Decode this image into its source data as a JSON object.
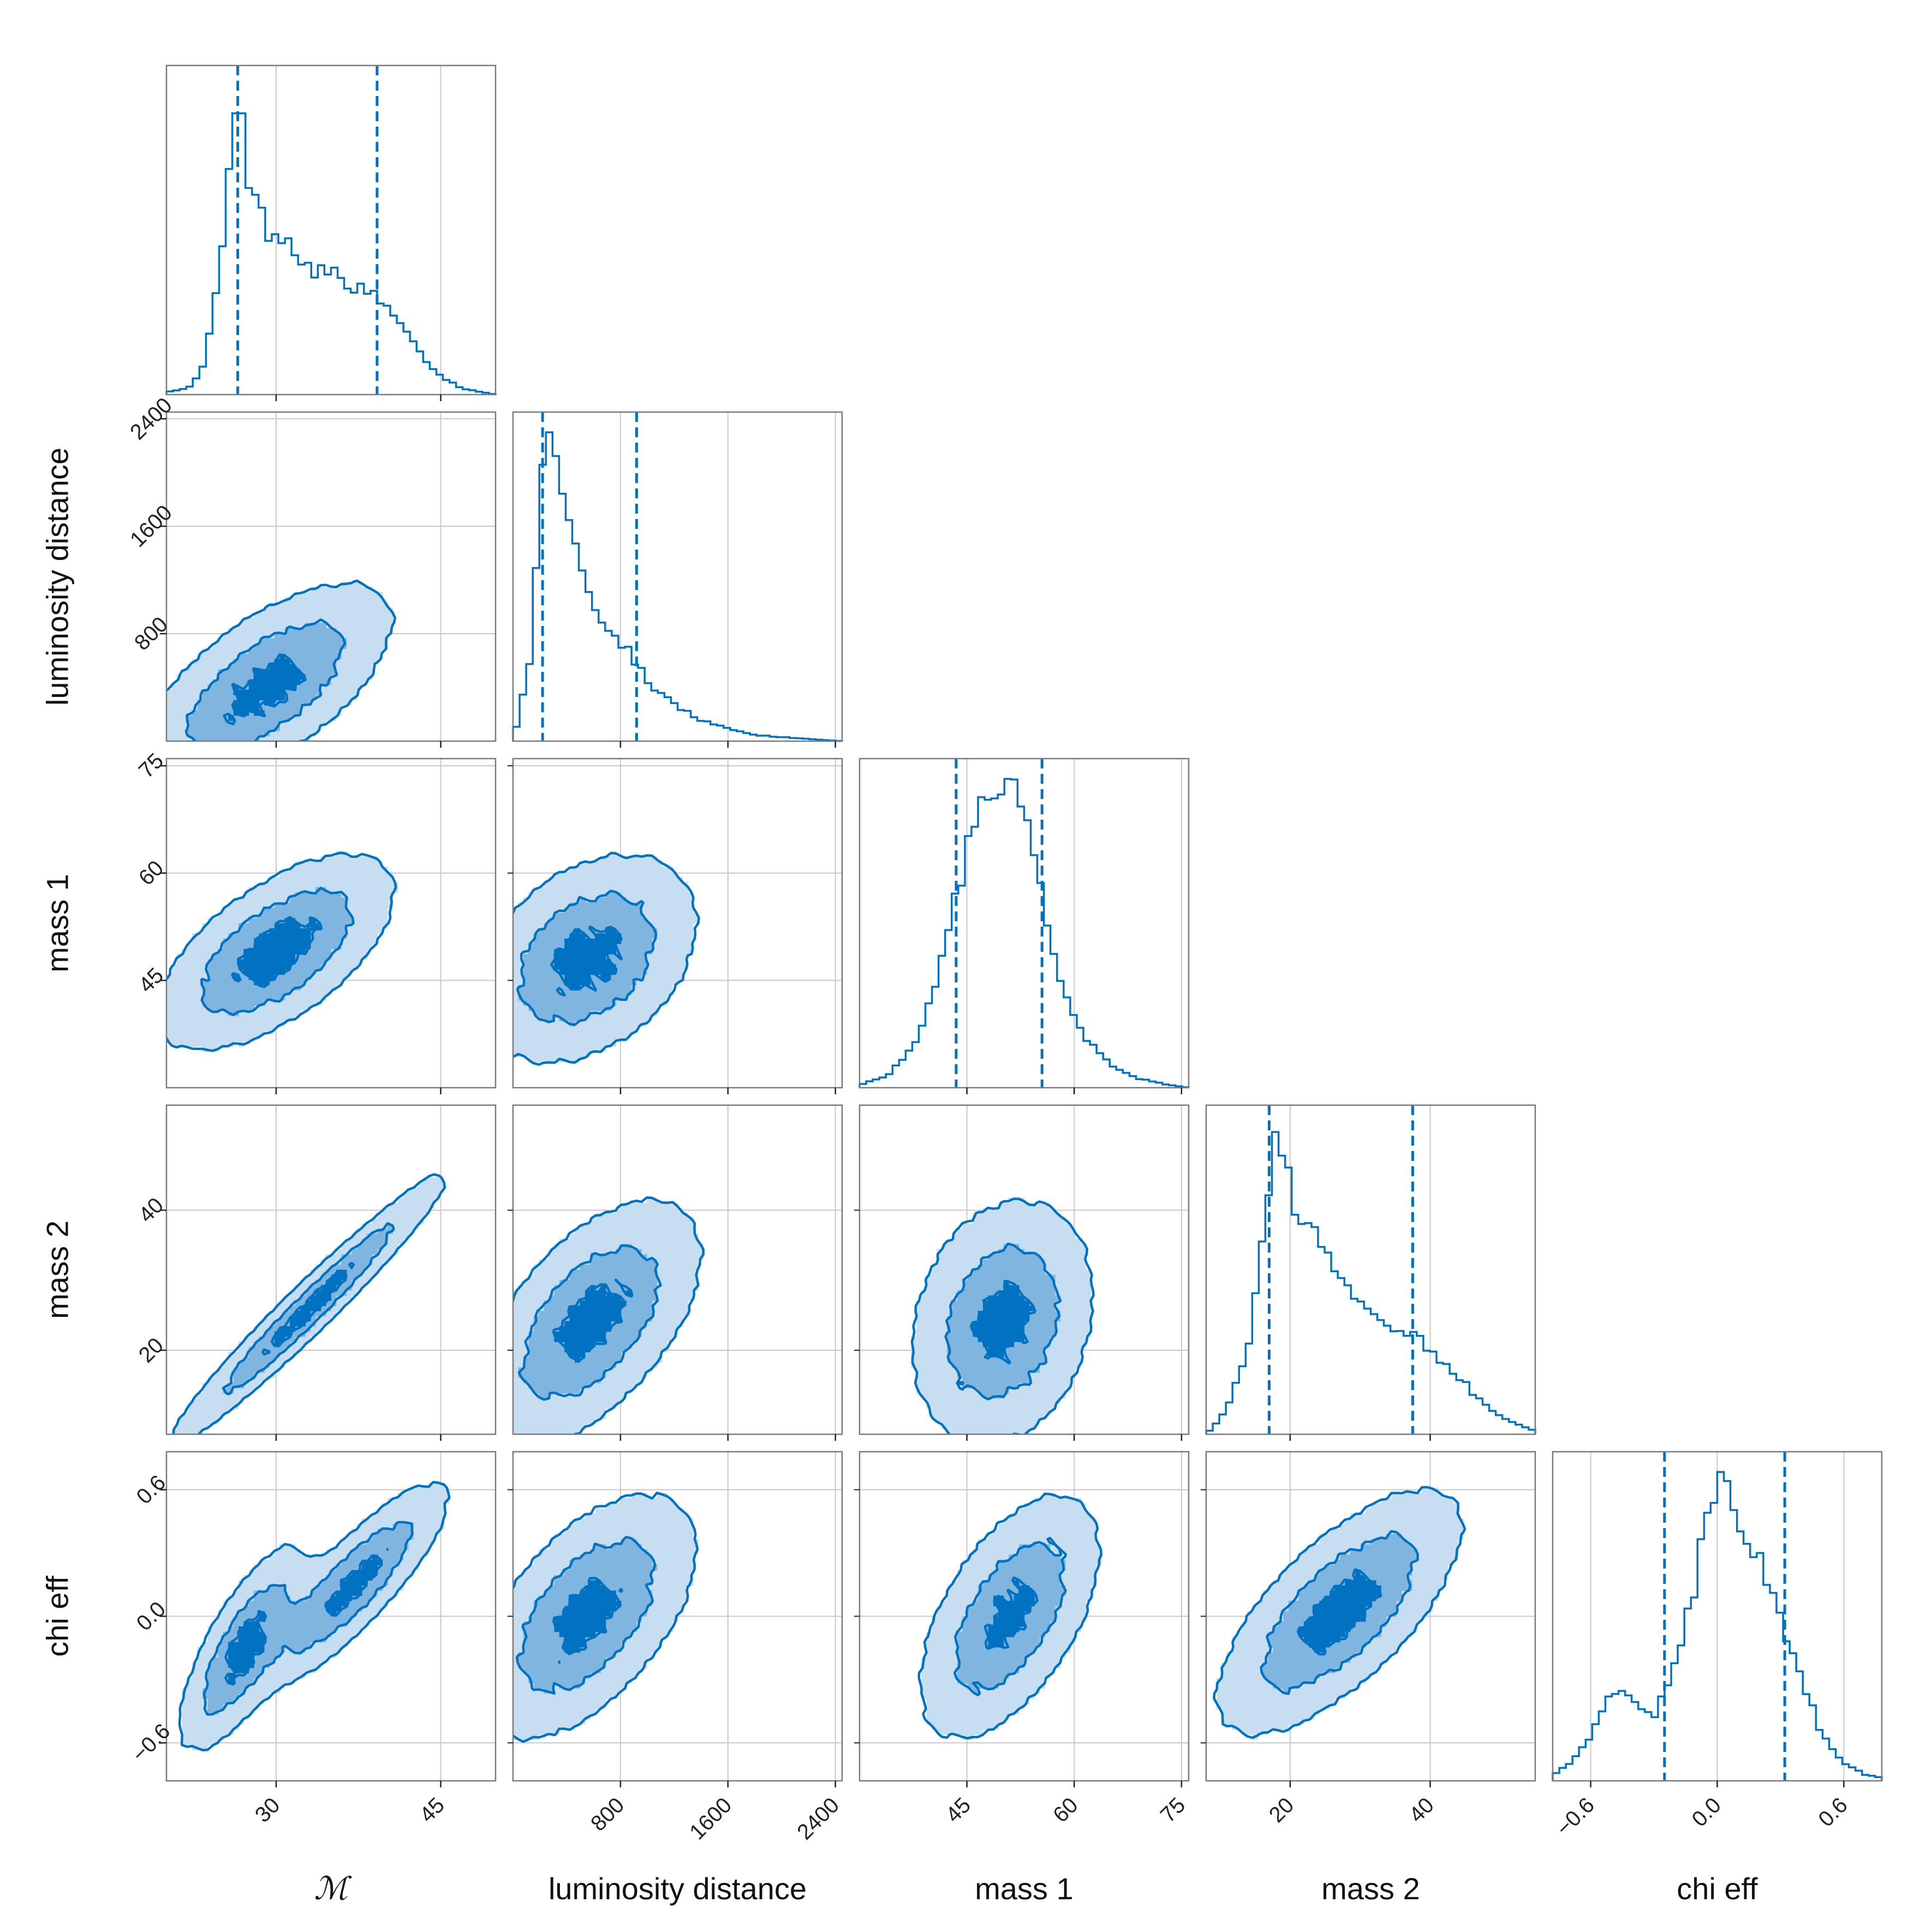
{
  "chart_data": {
    "type": "corner",
    "color": "#0072C1",
    "fill_colors": [
      "#C7DEF0",
      "#7FB5DE",
      "#0072C1"
    ],
    "parameters": [
      {
        "name": "M",
        "label": "ℳ",
        "range": [
          20,
          50
        ],
        "ticks": [
          30,
          45
        ],
        "tick_labels": [
          "30",
          "45"
        ],
        "quantiles": [
          26.5,
          39.2
        ],
        "hist_profile": [
          [
            20,
            0.01
          ],
          [
            22,
            0.02
          ],
          [
            23.5,
            0.1
          ],
          [
            25,
            0.45
          ],
          [
            26.5,
            1.0
          ],
          [
            27.5,
            0.72
          ],
          [
            29,
            0.55
          ],
          [
            31,
            0.52
          ],
          [
            33,
            0.42
          ],
          [
            35,
            0.4
          ],
          [
            37,
            0.36
          ],
          [
            39,
            0.32
          ],
          [
            41,
            0.25
          ],
          [
            43,
            0.14
          ],
          [
            45,
            0.06
          ],
          [
            47,
            0.02
          ],
          [
            50,
            0.0
          ]
        ]
      },
      {
        "name": "luminosity_distance",
        "label": "luminosity distance",
        "range": [
          0,
          2450
        ],
        "ticks": [
          800,
          1600,
          2400
        ],
        "tick_labels": [
          "800",
          "1600",
          "2400"
        ],
        "quantiles": [
          220,
          920
        ],
        "hist_profile": [
          [
            0,
            0.0
          ],
          [
            120,
            0.25
          ],
          [
            200,
            0.8
          ],
          [
            260,
            1.0
          ],
          [
            350,
            0.9
          ],
          [
            450,
            0.7
          ],
          [
            550,
            0.52
          ],
          [
            700,
            0.38
          ],
          [
            850,
            0.3
          ],
          [
            1000,
            0.2
          ],
          [
            1200,
            0.12
          ],
          [
            1400,
            0.07
          ],
          [
            1600,
            0.04
          ],
          [
            1800,
            0.02
          ],
          [
            2100,
            0.01
          ],
          [
            2450,
            0.0
          ]
        ]
      },
      {
        "name": "mass_1",
        "label": "mass 1",
        "range": [
          30,
          76
        ],
        "ticks": [
          45,
          60,
          75
        ],
        "tick_labels": [
          "45",
          "60",
          "75"
        ],
        "quantiles": [
          43.5,
          55.5
        ],
        "hist_profile": [
          [
            30,
            0.01
          ],
          [
            34,
            0.04
          ],
          [
            38,
            0.15
          ],
          [
            41,
            0.35
          ],
          [
            44,
            0.7
          ],
          [
            47,
            0.9
          ],
          [
            49,
            0.97
          ],
          [
            51,
            1.0
          ],
          [
            53,
            0.94
          ],
          [
            55,
            0.75
          ],
          [
            57,
            0.45
          ],
          [
            59,
            0.28
          ],
          [
            62,
            0.15
          ],
          [
            65,
            0.08
          ],
          [
            69,
            0.03
          ],
          [
            73,
            0.01
          ],
          [
            76,
            0.0
          ]
        ]
      },
      {
        "name": "mass_2",
        "label": "mass 2",
        "range": [
          8,
          55
        ],
        "ticks": [
          20,
          40
        ],
        "tick_labels": [
          "20",
          "40"
        ],
        "quantiles": [
          17,
          37.5
        ],
        "hist_profile": [
          [
            8,
            0.0
          ],
          [
            11,
            0.08
          ],
          [
            14,
            0.3
          ],
          [
            16,
            0.65
          ],
          [
            17.5,
            0.95
          ],
          [
            18.5,
            1.0
          ],
          [
            20,
            0.8
          ],
          [
            22,
            0.72
          ],
          [
            25,
            0.6
          ],
          [
            28,
            0.48
          ],
          [
            31,
            0.4
          ],
          [
            34,
            0.37
          ],
          [
            37,
            0.33
          ],
          [
            40,
            0.28
          ],
          [
            43,
            0.22
          ],
          [
            46,
            0.14
          ],
          [
            50,
            0.06
          ],
          [
            55,
            0.01
          ]
        ]
      },
      {
        "name": "chi_eff",
        "label": "chi eff",
        "range": [
          -0.78,
          0.78
        ],
        "ticks": [
          -0.6,
          0.0,
          0.6
        ],
        "tick_labels": [
          "−0.6",
          "0.0",
          "0.6"
        ],
        "quantiles": [
          -0.25,
          0.32
        ],
        "hist_profile": [
          [
            -0.78,
            0.02
          ],
          [
            -0.7,
            0.06
          ],
          [
            -0.6,
            0.15
          ],
          [
            -0.5,
            0.28
          ],
          [
            -0.45,
            0.3
          ],
          [
            -0.38,
            0.24
          ],
          [
            -0.3,
            0.22
          ],
          [
            -0.22,
            0.35
          ],
          [
            -0.12,
            0.6
          ],
          [
            -0.05,
            0.85
          ],
          [
            0.0,
            1.0
          ],
          [
            0.06,
            0.95
          ],
          [
            0.12,
            0.85
          ],
          [
            0.2,
            0.72
          ],
          [
            0.28,
            0.55
          ],
          [
            0.35,
            0.45
          ],
          [
            0.42,
            0.3
          ],
          [
            0.5,
            0.15
          ],
          [
            0.6,
            0.06
          ],
          [
            0.7,
            0.02
          ],
          [
            0.78,
            0.01
          ]
        ]
      }
    ],
    "pairs": [
      {
        "x": 0,
        "y": 1,
        "modes": [
          {
            "mx": 29,
            "my": 400,
            "sx": 6.0,
            "sy": 400,
            "rho": 0.65,
            "w": 1
          }
        ]
      },
      {
        "x": 0,
        "y": 2,
        "modes": [
          {
            "mx": 30,
            "my": 49,
            "sx": 5.5,
            "sy": 7,
            "rho": 0.62,
            "w": 1
          }
        ]
      },
      {
        "x": 1,
        "y": 2,
        "modes": [
          {
            "mx": 550,
            "my": 48,
            "sx": 420,
            "sy": 7.5,
            "rho": 0.35,
            "w": 1
          }
        ]
      },
      {
        "x": 0,
        "y": 3,
        "modes": [
          {
            "mx": 33,
            "my": 26,
            "sx": 6.5,
            "sy": 10,
            "rho": 0.97,
            "w": 1
          }
        ]
      },
      {
        "x": 1,
        "y": 3,
        "modes": [
          {
            "mx": 580,
            "my": 24,
            "sx": 420,
            "sy": 9,
            "rho": 0.55,
            "w": 1
          }
        ]
      },
      {
        "x": 2,
        "y": 3,
        "modes": [
          {
            "mx": 50,
            "my": 24,
            "sx": 6.5,
            "sy": 9,
            "rho": 0.2,
            "w": 1
          }
        ]
      },
      {
        "x": 0,
        "y": 4,
        "modes": [
          {
            "mx": 27,
            "my": -0.15,
            "sx": 3.0,
            "sy": 0.25,
            "rho": 0.75,
            "w": 0.5
          },
          {
            "mx": 37,
            "my": 0.15,
            "sx": 4.5,
            "sy": 0.25,
            "rho": 0.85,
            "w": 0.5
          }
        ]
      },
      {
        "x": 1,
        "y": 4,
        "modes": [
          {
            "mx": 550,
            "my": 0.0,
            "sx": 420,
            "sy": 0.3,
            "rho": 0.55,
            "w": 1
          }
        ]
      },
      {
        "x": 2,
        "y": 4,
        "modes": [
          {
            "mx": 51,
            "my": 0.0,
            "sx": 6.5,
            "sy": 0.3,
            "rho": 0.55,
            "w": 1
          }
        ]
      },
      {
        "x": 3,
        "y": 4,
        "modes": [
          {
            "mx": 27,
            "my": 0.02,
            "sx": 9,
            "sy": 0.3,
            "rho": 0.7,
            "w": 1
          }
        ]
      }
    ]
  }
}
